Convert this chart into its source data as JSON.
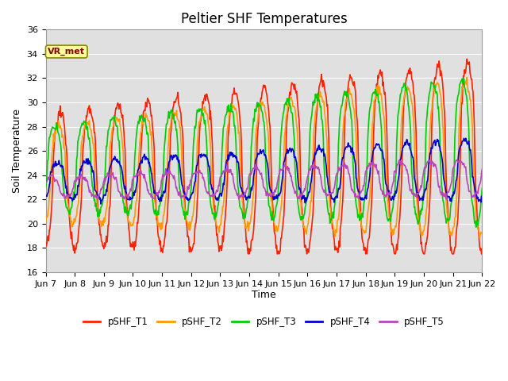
{
  "title": "Peltier SHF Temperatures",
  "xlabel": "Time",
  "ylabel": "Soil Temperature",
  "ylim": [
    16,
    36
  ],
  "background_color": "#e0e0e0",
  "grid_color": "white",
  "series_colors": {
    "pSHF_T1": "#ff2000",
    "pSHF_T2": "#ff9900",
    "pSHF_T3": "#00cc00",
    "pSHF_T4": "#0000cc",
    "pSHF_T5": "#bb44bb"
  },
  "series_linewidths": {
    "pSHF_T1": 1.2,
    "pSHF_T2": 1.2,
    "pSHF_T3": 1.2,
    "pSHF_T4": 1.2,
    "pSHF_T5": 1.2
  },
  "xtick_labels": [
    "Jun 7",
    "Jun 8",
    "Jun 9",
    "Jun 10",
    "Jun 11",
    "Jun 12",
    "Jun 13",
    "Jun 14",
    "Jun 15",
    "Jun 16",
    "Jun 17",
    "Jun 18",
    "Jun 19",
    "Jun 20",
    "Jun 21",
    "Jun 22"
  ],
  "annotation_text": "VR_met",
  "legend_entries": [
    "pSHF_T1",
    "pSHF_T2",
    "pSHF_T3",
    "pSHF_T4",
    "pSHF_T5"
  ],
  "title_fontsize": 12,
  "axis_label_fontsize": 9,
  "tick_fontsize": 8
}
